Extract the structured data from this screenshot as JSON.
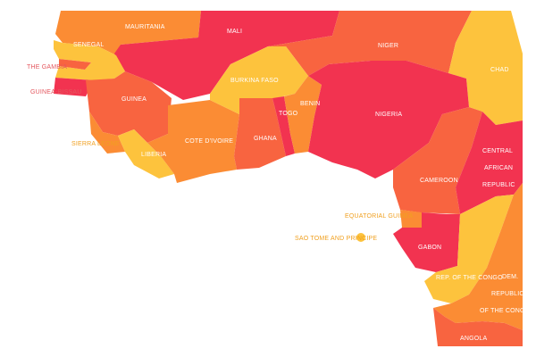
{
  "colors": {
    "red": "#f23350",
    "orange_red": "#f86440",
    "orange": "#fb8c34",
    "yellow": "#fdc33d",
    "label_light": "#ffffff",
    "label_external": "#e4575e",
    "label_external_yellow": "#f0a020"
  },
  "countries": {
    "mauritania": {
      "label": "MAURITANIA",
      "color": "orange"
    },
    "mali": {
      "label": "MALI",
      "color": "red"
    },
    "niger": {
      "label": "NIGER",
      "color": "orange_red"
    },
    "chad": {
      "label": "CHAD",
      "color": "yellow"
    },
    "senegal": {
      "label": "SENEGAL",
      "color": "yellow"
    },
    "the_gambia": {
      "label": "THE GAMBIA",
      "color": "orange_red"
    },
    "guinea_bissau": {
      "label": "GUINEA-BISSAU",
      "color": "red"
    },
    "guinea": {
      "label": "GUINEA",
      "color": "orange_red"
    },
    "sierra_leone": {
      "label": "SIERRA LEONE",
      "color": "orange"
    },
    "liberia": {
      "label": "LIBERIA",
      "color": "yellow"
    },
    "cote_divoire": {
      "label": "COTE D'IVOIRE",
      "color": "orange"
    },
    "burkina_faso": {
      "label": "BURKINA FASO",
      "color": "yellow"
    },
    "ghana": {
      "label": "GHANA",
      "color": "orange_red"
    },
    "togo": {
      "label": "TOGO",
      "color": "red"
    },
    "benin": {
      "label": "BENIN",
      "color": "orange"
    },
    "nigeria": {
      "label": "NIGERIA",
      "color": "red"
    },
    "cameroon": {
      "label": "CAMEROON",
      "color": "orange_red"
    },
    "central_african_republic": {
      "label_lines": [
        "CENTRAL",
        "AFRICAN",
        "REPUBLIC"
      ],
      "color": "red"
    },
    "equatorial_guinea": {
      "label": "EQUATORIAL GUINEA",
      "color": "orange"
    },
    "sao_tome": {
      "label": "SAO TOME AND PRINCIPE",
      "color": "yellow"
    },
    "gabon": {
      "label": "GABON",
      "color": "red"
    },
    "republic_of_the_congo": {
      "label": "REP. OF THE CONGO",
      "color": "yellow"
    },
    "dr_congo": {
      "label_lines": [
        "DEM.",
        "REPUBLIC",
        "OF THE CONGO"
      ],
      "color": "orange"
    },
    "angola": {
      "label": "ANGOLA",
      "color": "orange_red"
    }
  }
}
